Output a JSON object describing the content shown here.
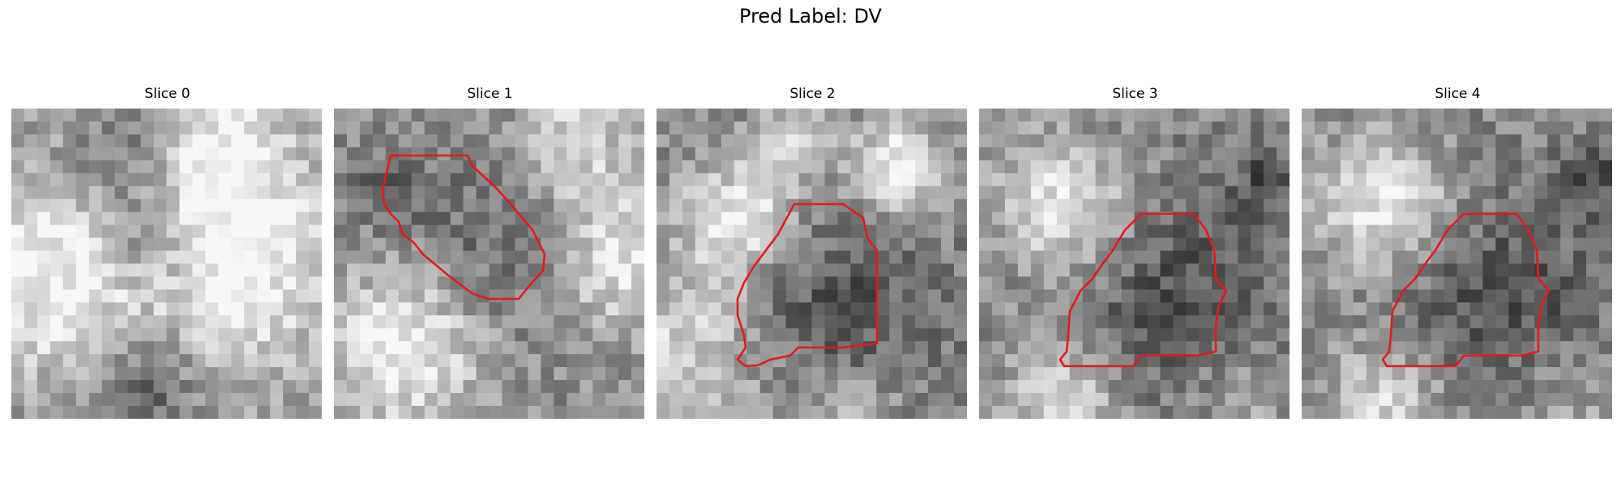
{
  "figure": {
    "title": "Pred Label: DV"
  },
  "slices": [
    {
      "title": "Slice 0",
      "has_contour": false
    },
    {
      "title": "Slice 1",
      "has_contour": true
    },
    {
      "title": "Slice 2",
      "has_contour": true
    },
    {
      "title": "Slice 3",
      "has_contour": true
    },
    {
      "title": "Slice 4",
      "has_contour": true
    }
  ],
  "colors": {
    "contour": "#e31a1c"
  }
}
